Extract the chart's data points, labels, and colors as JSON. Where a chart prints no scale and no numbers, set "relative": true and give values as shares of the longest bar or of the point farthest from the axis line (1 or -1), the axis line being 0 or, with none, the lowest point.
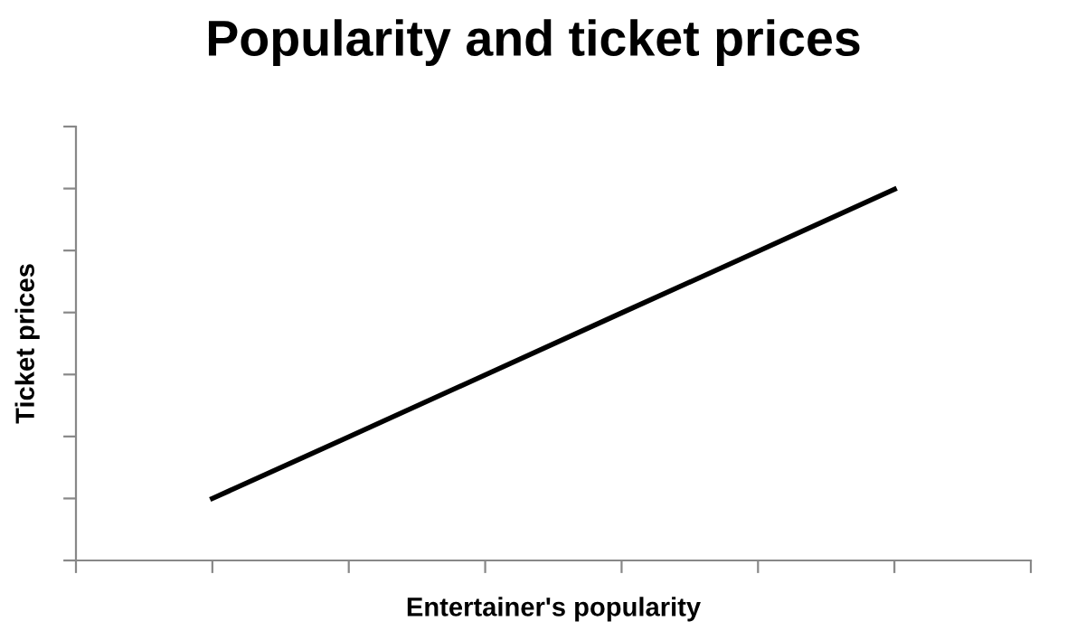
{
  "chart_data": {
    "type": "line",
    "title": "Popularity and ticket prices",
    "xlabel": "Entertainer's popularity",
    "ylabel": "Ticket prices",
    "relative": true,
    "categories": [
      null,
      null,
      null,
      null,
      null,
      null
    ],
    "series": [
      {
        "color": "#000000",
        "values": [
          0.167,
          0.333,
          0.5,
          0.667,
          0.833,
          1
        ]
      }
    ],
    "marker": "none",
    "line_style": "solid"
  }
}
